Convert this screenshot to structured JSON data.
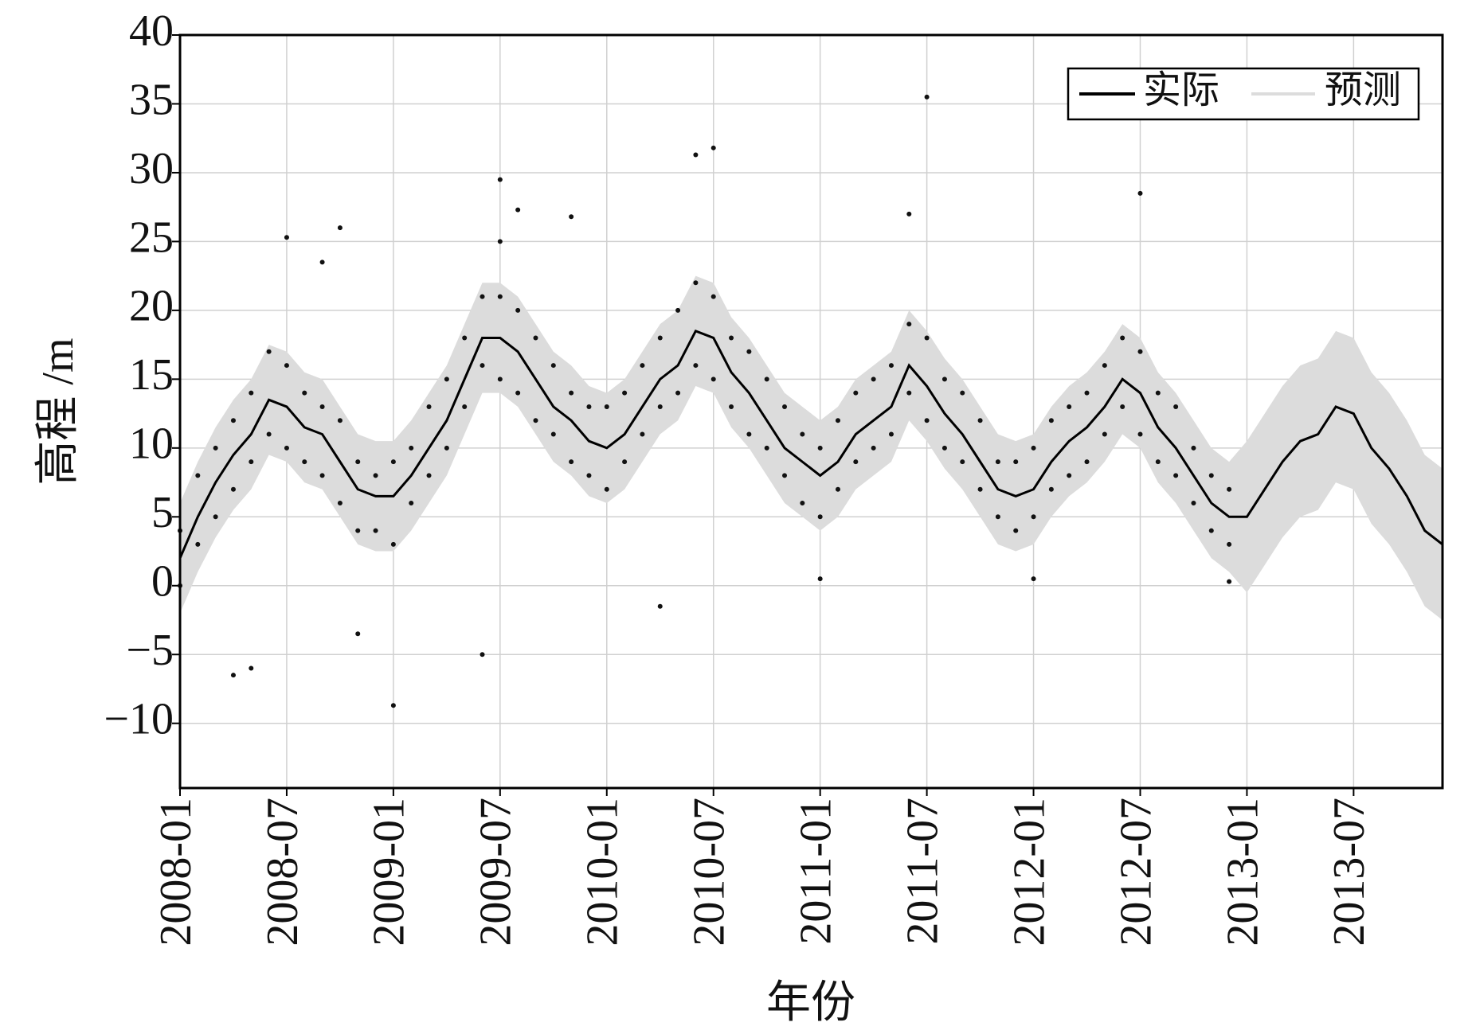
{
  "chart_data": {
    "type": "line",
    "xlabel": "年份",
    "ylabel": "高程 /m",
    "x": [
      "2008-01",
      "2008-02",
      "2008-03",
      "2008-04",
      "2008-05",
      "2008-06",
      "2008-07",
      "2008-08",
      "2008-09",
      "2008-10",
      "2008-11",
      "2008-12",
      "2009-01",
      "2009-02",
      "2009-03",
      "2009-04",
      "2009-05",
      "2009-06",
      "2009-07",
      "2009-08",
      "2009-09",
      "2009-10",
      "2009-11",
      "2009-12",
      "2010-01",
      "2010-02",
      "2010-03",
      "2010-04",
      "2010-05",
      "2010-06",
      "2010-07",
      "2010-08",
      "2010-09",
      "2010-10",
      "2010-11",
      "2010-12",
      "2011-01",
      "2011-02",
      "2011-03",
      "2011-04",
      "2011-05",
      "2011-06",
      "2011-07",
      "2011-08",
      "2011-09",
      "2011-10",
      "2011-11",
      "2011-12",
      "2012-01",
      "2012-02",
      "2012-03",
      "2012-04",
      "2012-05",
      "2012-06",
      "2012-07",
      "2012-08",
      "2012-09",
      "2012-10",
      "2012-11",
      "2012-12",
      "2013-01",
      "2013-02",
      "2013-03",
      "2013-04",
      "2013-05",
      "2013-06",
      "2013-07",
      "2013-08",
      "2013-09",
      "2013-10",
      "2013-11",
      "2013-12"
    ],
    "series": [
      {
        "name": "实际",
        "color": "#000000",
        "values": [
          2,
          5,
          7.5,
          9.5,
          11,
          13.5,
          13,
          11.5,
          11,
          9,
          7,
          6.5,
          6.5,
          8,
          10,
          12,
          15,
          18,
          18,
          17,
          15,
          13,
          12,
          10.5,
          10,
          11,
          13,
          15,
          16,
          18.5,
          18,
          15.5,
          14,
          12,
          10,
          9,
          8,
          9,
          11,
          12,
          13,
          16,
          14.5,
          12.5,
          11,
          9,
          7,
          6.5,
          7,
          9,
          10.5,
          11.5,
          13,
          15,
          14,
          11.5,
          10,
          8,
          6,
          5,
          5,
          7,
          9,
          10.5,
          11,
          13,
          12.5,
          10,
          8.5,
          6.5,
          4,
          3
        ]
      }
    ],
    "band": {
      "name": "预测",
      "color": "#dcdcdc",
      "lower": [
        -2,
        1,
        3.5,
        5.5,
        7,
        9.5,
        9,
        7.5,
        7,
        5,
        3,
        2.5,
        2.5,
        4,
        6,
        8,
        11,
        14,
        14,
        13,
        11,
        9,
        8,
        6.5,
        6,
        7,
        9,
        11,
        12,
        14.5,
        14,
        11.5,
        10,
        8,
        6,
        5,
        4,
        5,
        7,
        8,
        9,
        12,
        10.5,
        8.5,
        7,
        5,
        3,
        2.5,
        3,
        5,
        6.5,
        7.5,
        9,
        11,
        10,
        7.5,
        6,
        4,
        2,
        1,
        -0.5,
        1.5,
        3.5,
        5,
        5.5,
        7.5,
        7,
        4.5,
        3,
        1,
        -1.5,
        -2.5
      ],
      "upper": [
        6,
        9,
        11.5,
        13.5,
        15,
        17.5,
        17,
        15.5,
        15,
        13,
        11,
        10.5,
        10.5,
        12,
        14,
        16,
        19,
        22,
        22,
        21,
        19,
        17,
        16,
        14.5,
        14,
        15,
        17,
        19,
        20,
        22.5,
        22,
        19.5,
        18,
        16,
        14,
        13,
        12,
        13,
        15,
        16,
        17,
        20,
        18.5,
        16.5,
        15,
        13,
        11,
        10.5,
        11,
        13,
        14.5,
        15.5,
        17,
        19,
        18,
        15.5,
        14,
        12,
        10,
        9,
        10.5,
        12.5,
        14.5,
        16,
        16.5,
        18.5,
        18,
        15.5,
        14,
        12,
        9.5,
        8.5
      ]
    },
    "points": {
      "color": "#111111",
      "x": [
        "2008-01",
        "2008-01",
        "2008-02",
        "2008-02",
        "2008-03",
        "2008-03",
        "2008-04",
        "2008-04",
        "2008-05",
        "2008-05",
        "2008-06",
        "2008-06",
        "2008-07",
        "2008-07",
        "2008-08",
        "2008-08",
        "2008-09",
        "2008-09",
        "2008-10",
        "2008-10",
        "2008-11",
        "2008-11",
        "2008-12",
        "2008-12",
        "2009-01",
        "2009-01",
        "2009-02",
        "2009-02",
        "2009-03",
        "2009-03",
        "2009-04",
        "2009-04",
        "2009-05",
        "2009-05",
        "2009-06",
        "2009-06",
        "2009-07",
        "2009-07",
        "2009-08",
        "2009-08",
        "2009-09",
        "2009-09",
        "2009-10",
        "2009-10",
        "2009-11",
        "2009-11",
        "2009-12",
        "2009-12",
        "2010-01",
        "2010-01",
        "2010-02",
        "2010-02",
        "2010-03",
        "2010-03",
        "2010-04",
        "2010-04",
        "2010-05",
        "2010-05",
        "2010-06",
        "2010-06",
        "2010-07",
        "2010-07",
        "2010-08",
        "2010-08",
        "2010-09",
        "2010-09",
        "2010-10",
        "2010-10",
        "2010-11",
        "2010-11",
        "2010-12",
        "2010-12",
        "2011-01",
        "2011-01",
        "2011-02",
        "2011-02",
        "2011-03",
        "2011-03",
        "2011-04",
        "2011-04",
        "2011-05",
        "2011-05",
        "2011-06",
        "2011-06",
        "2011-07",
        "2011-07",
        "2011-08",
        "2011-08",
        "2011-09",
        "2011-09",
        "2011-10",
        "2011-10",
        "2011-11",
        "2011-11",
        "2011-12",
        "2011-12",
        "2012-01",
        "2012-01",
        "2012-02",
        "2012-02",
        "2012-03",
        "2012-03",
        "2012-04",
        "2012-04",
        "2012-05",
        "2012-05",
        "2012-06",
        "2012-06",
        "2012-07",
        "2012-07",
        "2012-08",
        "2012-08",
        "2012-09",
        "2012-09",
        "2012-10",
        "2012-10",
        "2012-11",
        "2012-11",
        "2012-12",
        "2012-12",
        "2008-04",
        "2008-05",
        "2008-07",
        "2008-09",
        "2008-10",
        "2008-11",
        "2009-01",
        "2009-06",
        "2009-07",
        "2009-07",
        "2009-08",
        "2009-11",
        "2010-06",
        "2010-07",
        "2010-04",
        "2011-01",
        "2011-07",
        "2011-06",
        "2012-01",
        "2012-07",
        "2012-12"
      ],
      "y": [
        0,
        4,
        8,
        3,
        10,
        5,
        12,
        7,
        14,
        9,
        17,
        11,
        16,
        10,
        14,
        9,
        13,
        8,
        12,
        6,
        9,
        4,
        8,
        4,
        9,
        3,
        10,
        6,
        13,
        8,
        15,
        10,
        18,
        13,
        21,
        16,
        21,
        15,
        20,
        14,
        18,
        12,
        16,
        11,
        14,
        9,
        13,
        8,
        13,
        7,
        14,
        9,
        16,
        11,
        18,
        13,
        20,
        14,
        22,
        16,
        21,
        15,
        18,
        13,
        17,
        11,
        15,
        10,
        13,
        8,
        11,
        6,
        10,
        5,
        12,
        7,
        14,
        9,
        15,
        10,
        16,
        11,
        19,
        14,
        18,
        12,
        15,
        10,
        14,
        9,
        12,
        7,
        9,
        5,
        9,
        4,
        10,
        5,
        12,
        7,
        13,
        8,
        14,
        9,
        16,
        11,
        18,
        13,
        17,
        11,
        14,
        9,
        13,
        8,
        10,
        6,
        8,
        4,
        7,
        3,
        -6.5,
        -6,
        25.3,
        23.5,
        26,
        -3.5,
        -8.7,
        -5,
        29.5,
        25,
        27.3,
        26.8,
        31.3,
        31.8,
        -1.5,
        0.5,
        35.5,
        27,
        0.5,
        28.5,
        0.3
      ]
    },
    "xlim": [
      "2008-01",
      "2013-12"
    ],
    "xticks": [
      "2008-01",
      "2008-07",
      "2009-01",
      "2009-07",
      "2010-01",
      "2010-07",
      "2011-01",
      "2011-07",
      "2012-01",
      "2012-07",
      "2013-01",
      "2013-07"
    ],
    "ylim": [
      -14.7,
      40
    ],
    "yticks": [
      {
        "value": -10,
        "label": "−10"
      },
      {
        "value": -5,
        "label": "−5"
      },
      0,
      5,
      10,
      15,
      20,
      25,
      30,
      35,
      40
    ],
    "grid": true,
    "legend": "upper right"
  }
}
